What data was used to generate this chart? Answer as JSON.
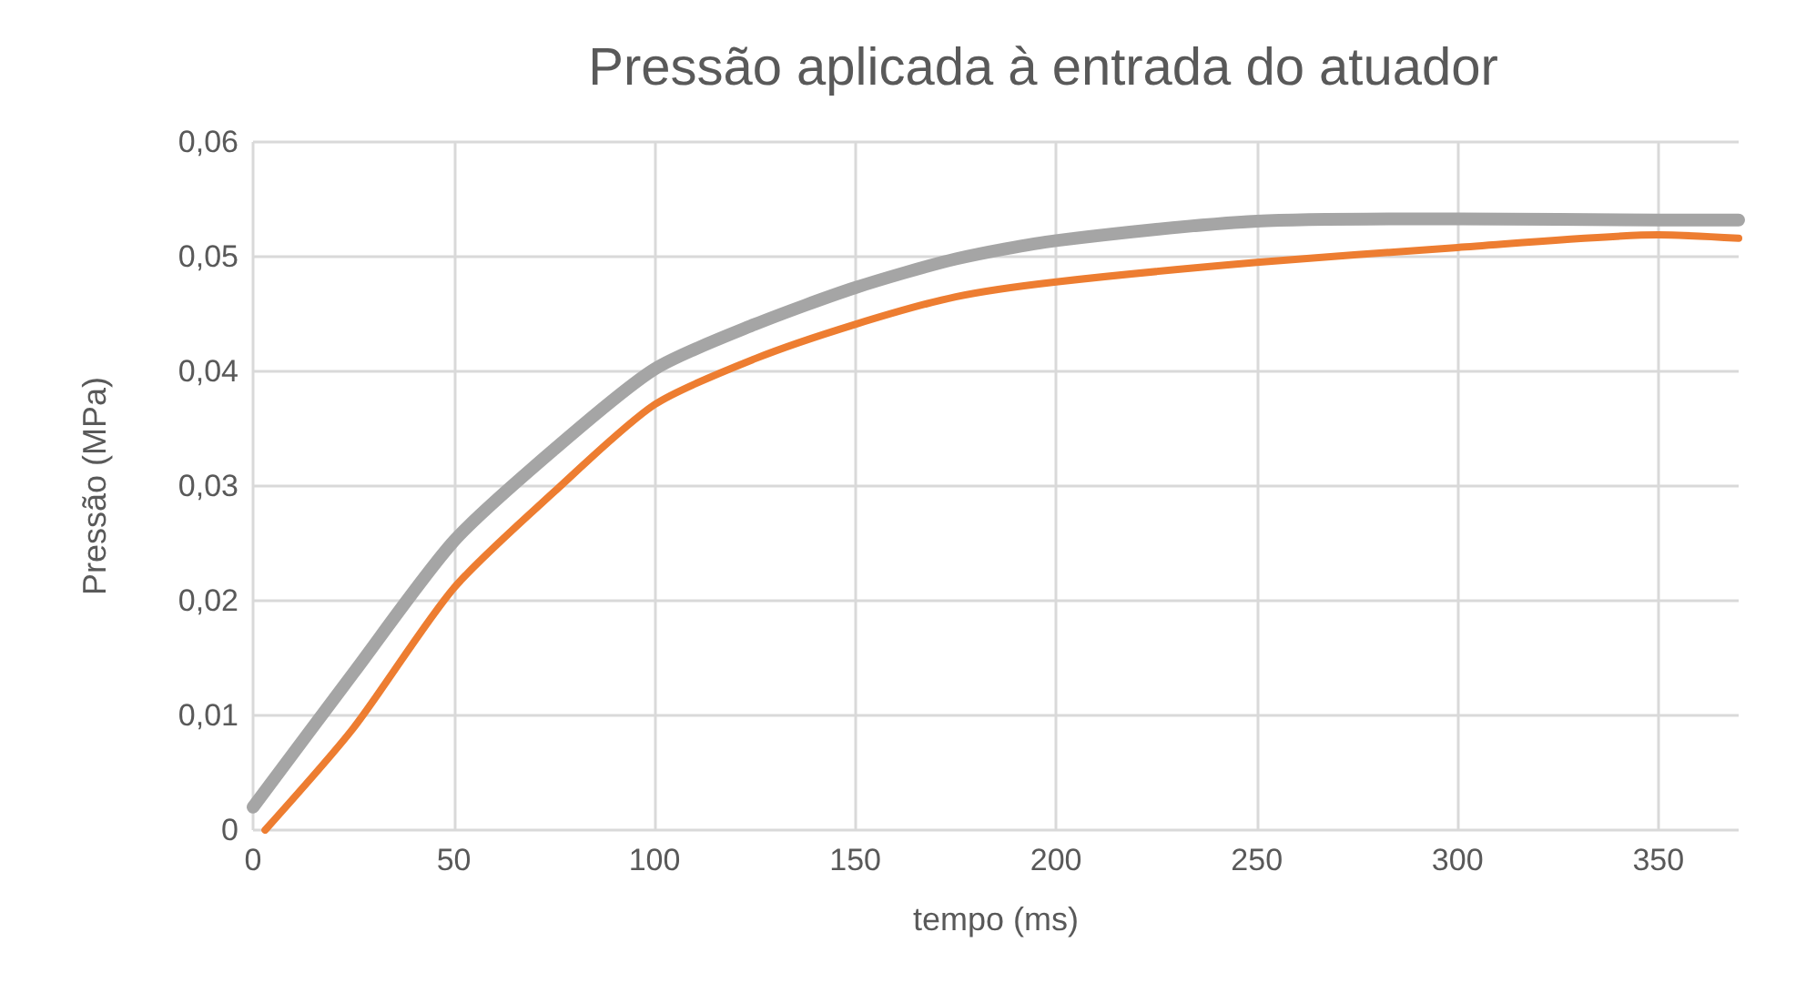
{
  "chart_data": {
    "type": "line",
    "title": "Pressão aplicada à entrada do atuador",
    "xlabel": "tempo (ms)",
    "ylabel": "Pressão (MPa)",
    "xlim": [
      0,
      370
    ],
    "xticks": [
      0,
      50,
      100,
      150,
      200,
      250,
      300,
      350
    ],
    "ylim": [
      0,
      0.06
    ],
    "yticks": [
      0,
      {
        "value": 0.01,
        "label": "0,01"
      },
      {
        "value": 0.02,
        "label": "0,02"
      },
      {
        "value": 0.03,
        "label": "0,03"
      },
      {
        "value": 0.04,
        "label": "0,04"
      },
      {
        "value": 0.05,
        "label": "0,05"
      },
      {
        "value": 0.06,
        "label": "0,06"
      }
    ],
    "grid": true,
    "marker": "none",
    "line_style": "solid",
    "series": [
      {
        "color": "#a5a5a5",
        "x": [
          0,
          25,
          50,
          75,
          100,
          125,
          150,
          175,
          200,
          250,
          300,
          350,
          370
        ],
        "values": [
          0.002,
          0.0137,
          0.0252,
          0.0332,
          0.0402,
          0.0441,
          0.0473,
          0.0498,
          0.0514,
          0.0531,
          0.0533,
          0.0532,
          0.0532
        ]
      },
      {
        "color": "#ed7d31",
        "x": [
          3,
          25,
          50,
          75,
          100,
          125,
          150,
          175,
          200,
          250,
          300,
          350,
          370
        ],
        "values": [
          0,
          0.0089,
          0.0211,
          0.0295,
          0.0371,
          0.0411,
          0.0441,
          0.0465,
          0.0478,
          0.0495,
          0.0508,
          0.0519,
          0.0516
        ]
      }
    ]
  }
}
